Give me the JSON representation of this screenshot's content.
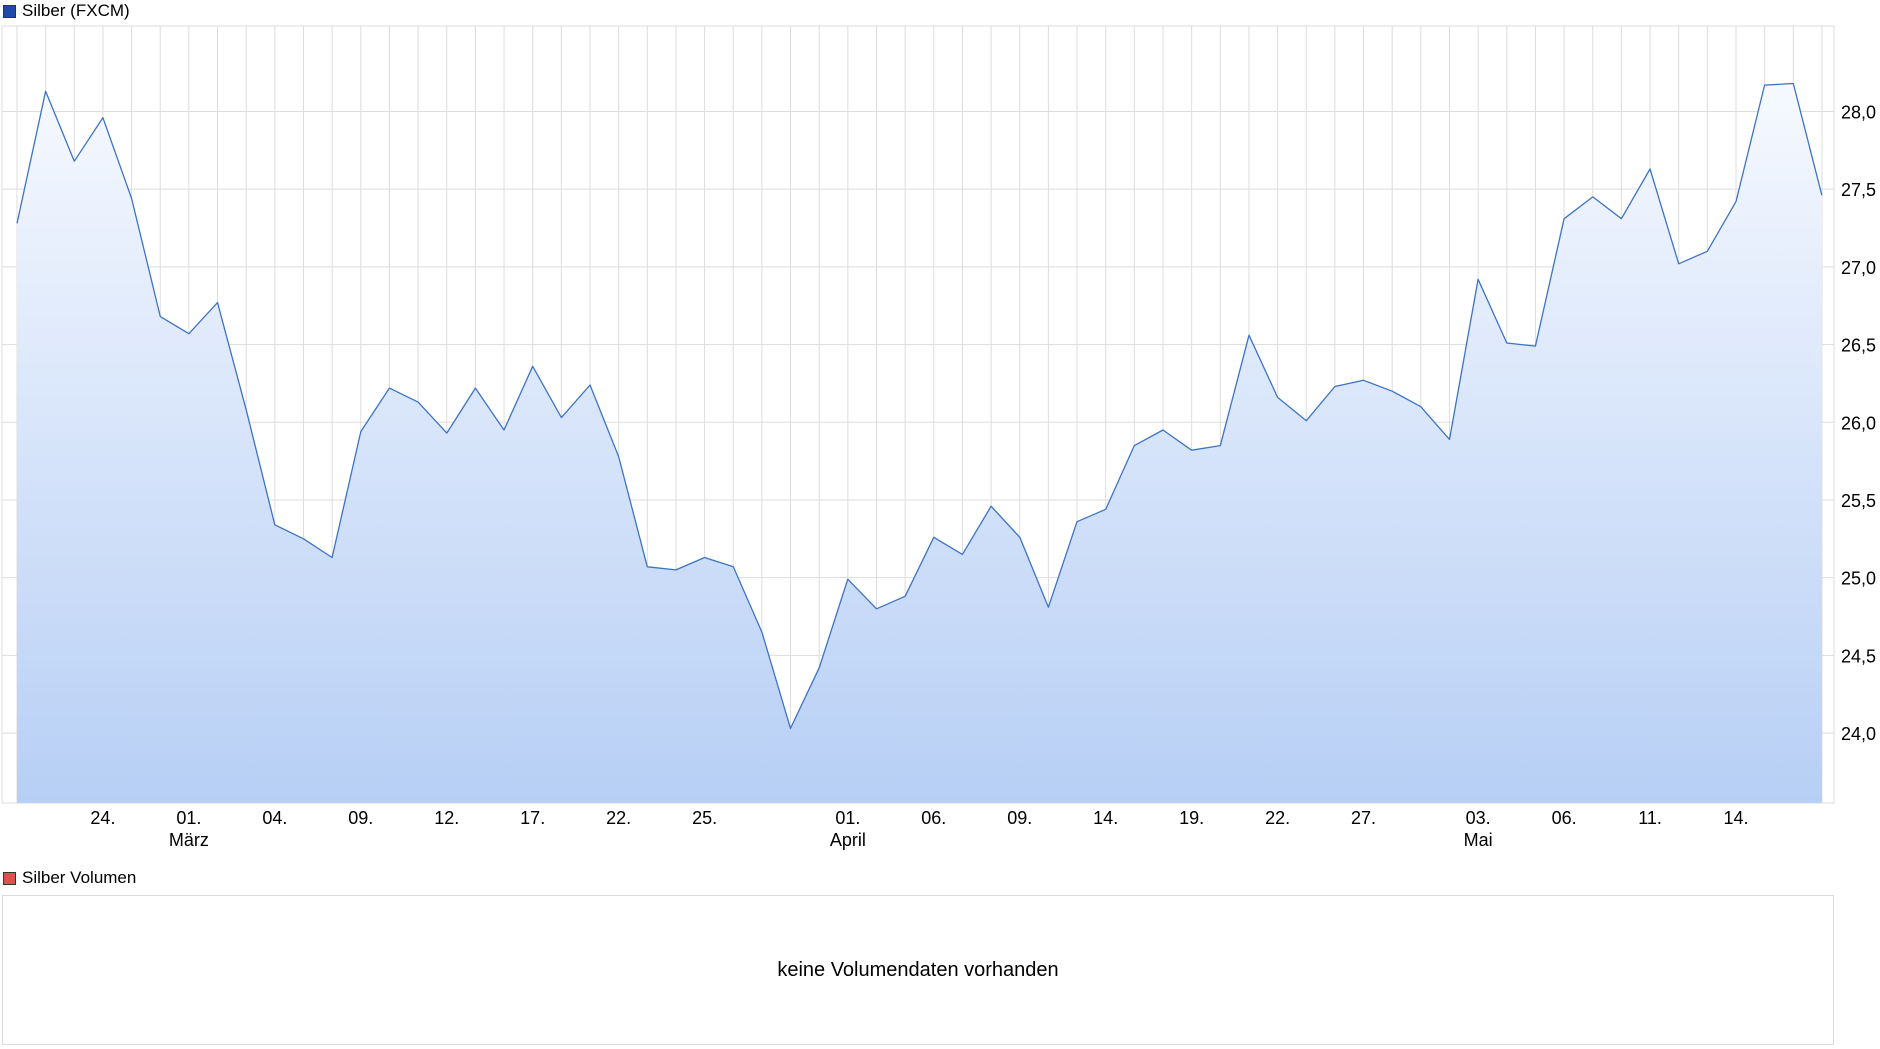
{
  "legend": {
    "price": "Silber (FXCM)",
    "volume": "Silber Volumen"
  },
  "volume_panel": {
    "message": "keine Volumendaten vorhanden"
  },
  "colors": {
    "line": "#3d73c7",
    "fill_top": "#f6f9ff",
    "fill_bottom": "#b7cff5",
    "grid": "#dddddd",
    "price_swatch": "#1f4aa8",
    "volume_swatch": "#d9534f"
  },
  "chart_data": {
    "type": "area",
    "title": "Silber (FXCM)",
    "xlabel": "",
    "ylabel": "",
    "ylim": [
      23.55,
      28.55
    ],
    "grid": true,
    "y_ticks": [
      {
        "value": 24.0,
        "label": "24,0"
      },
      {
        "value": 24.5,
        "label": "24,5"
      },
      {
        "value": 25.0,
        "label": "25,0"
      },
      {
        "value": 25.5,
        "label": "25,5"
      },
      {
        "value": 26.0,
        "label": "26,0"
      },
      {
        "value": 26.5,
        "label": "26,5"
      },
      {
        "value": 27.0,
        "label": "27,0"
      },
      {
        "value": 27.5,
        "label": "27,5"
      },
      {
        "value": 28.0,
        "label": "28,0"
      }
    ],
    "x_ticks": [
      {
        "index": 3,
        "label": "24."
      },
      {
        "index": 6,
        "label": "01.",
        "sublabel": "März"
      },
      {
        "index": 9,
        "label": "04."
      },
      {
        "index": 12,
        "label": "09."
      },
      {
        "index": 15,
        "label": "12."
      },
      {
        "index": 18,
        "label": "17."
      },
      {
        "index": 21,
        "label": "22."
      },
      {
        "index": 24,
        "label": "25."
      },
      {
        "index": 29,
        "label": "01.",
        "sublabel": "April"
      },
      {
        "index": 32,
        "label": "06."
      },
      {
        "index": 35,
        "label": "09."
      },
      {
        "index": 38,
        "label": "14."
      },
      {
        "index": 41,
        "label": "19."
      },
      {
        "index": 44,
        "label": "22."
      },
      {
        "index": 47,
        "label": "27."
      },
      {
        "index": 51,
        "label": "03.",
        "sublabel": "Mai"
      },
      {
        "index": 54,
        "label": "06."
      },
      {
        "index": 57,
        "label": "11."
      },
      {
        "index": 60,
        "label": "14."
      }
    ],
    "series": [
      {
        "values": [
          27.28,
          28.13,
          27.68,
          27.96,
          27.44,
          26.68,
          26.57,
          26.77,
          26.08,
          25.34,
          25.25,
          25.13,
          25.94,
          26.22,
          26.13,
          25.93,
          26.22,
          25.95,
          26.36,
          26.03,
          26.24,
          25.78,
          25.07,
          25.05,
          25.13,
          25.07,
          24.65,
          24.03,
          24.42,
          24.99,
          24.8,
          24.88,
          25.26,
          25.15,
          25.46,
          25.26,
          24.81,
          25.36,
          25.44,
          25.85,
          25.95,
          25.82,
          25.85,
          26.56,
          26.16,
          26.01,
          26.23,
          26.27,
          26.2,
          26.1,
          25.89,
          26.92,
          26.51,
          26.49,
          27.31,
          27.45,
          27.31,
          27.63,
          27.02,
          27.1,
          27.42,
          28.17,
          28.18,
          27.46
        ]
      }
    ]
  }
}
